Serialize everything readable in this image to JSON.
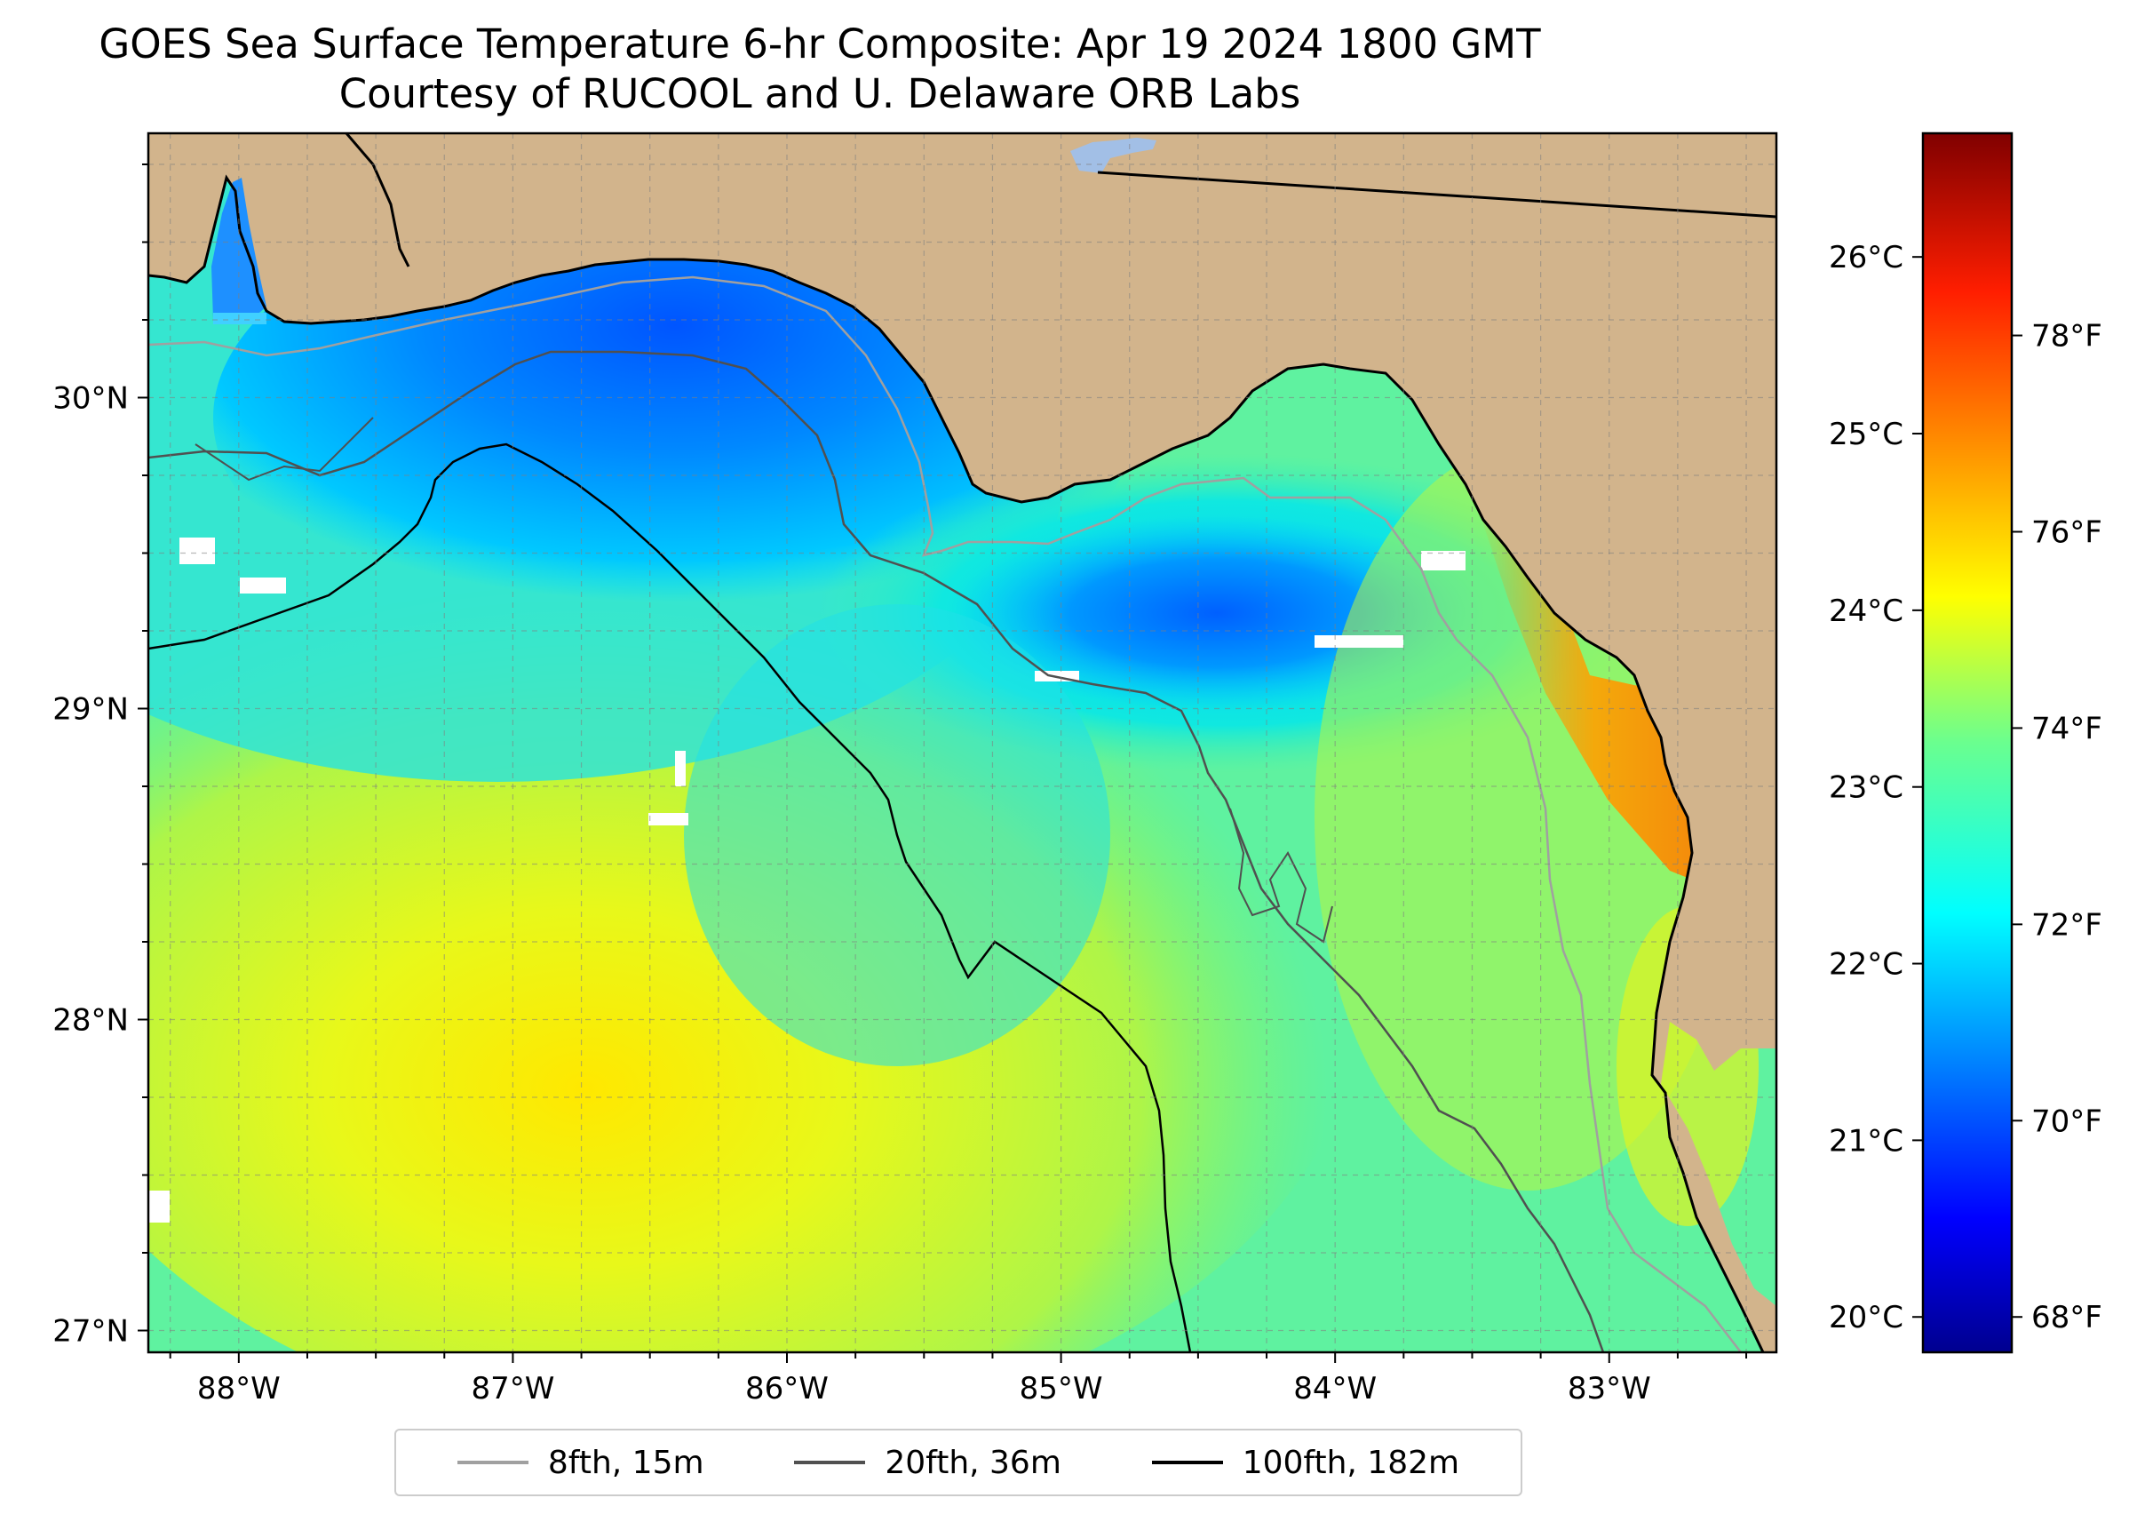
{
  "title": "GOES Sea Surface Temperature 6-hr Composite: Apr 19 2024 1800 GMT",
  "subtitle": "Courtesy of RUCOOL and U. Delaware ORB Labs",
  "map": {
    "extent": {
      "lon_min": -88.33,
      "lon_max": -82.39,
      "lat_min": 26.93,
      "lat_max": 30.85
    },
    "lon_ticks": [
      {
        "value": -88,
        "label": "88°W"
      },
      {
        "value": -87,
        "label": "87°W"
      },
      {
        "value": -86,
        "label": "86°W"
      },
      {
        "value": -85,
        "label": "85°W"
      },
      {
        "value": -84,
        "label": "84°W"
      },
      {
        "value": -83,
        "label": "83°W"
      }
    ],
    "lat_ticks": [
      {
        "value": 27,
        "label": "27°N"
      },
      {
        "value": 28,
        "label": "28°N"
      },
      {
        "value": 29,
        "label": "29°N"
      },
      {
        "value": 30,
        "label": "30°N"
      }
    ],
    "land_color": "#d2b48c",
    "water_color": "#a2bfe6",
    "gridlines": "dashed"
  },
  "colorbar": {
    "colormap": "jet",
    "celsius_range": [
      19.8,
      26.7
    ],
    "celsius_ticks": [
      {
        "value": 20,
        "label": "20°C"
      },
      {
        "value": 21,
        "label": "21°C"
      },
      {
        "value": 22,
        "label": "22°C"
      },
      {
        "value": 23,
        "label": "23°C"
      },
      {
        "value": 24,
        "label": "24°C"
      },
      {
        "value": 25,
        "label": "25°C"
      },
      {
        "value": 26,
        "label": "26°C"
      }
    ],
    "fahrenheit_ticks": [
      {
        "value": 68,
        "label": "68°F"
      },
      {
        "value": 70,
        "label": "70°F"
      },
      {
        "value": 72,
        "label": "72°F"
      },
      {
        "value": 74,
        "label": "74°F"
      },
      {
        "value": 76,
        "label": "76°F"
      },
      {
        "value": 78,
        "label": "78°F"
      }
    ]
  },
  "legend": {
    "items": [
      {
        "label": "8fth, 15m",
        "color": "#a0a0a0"
      },
      {
        "label": "20fth, 36m",
        "color": "#505050"
      },
      {
        "label": "100fth, 182m",
        "color": "#000000"
      }
    ]
  }
}
